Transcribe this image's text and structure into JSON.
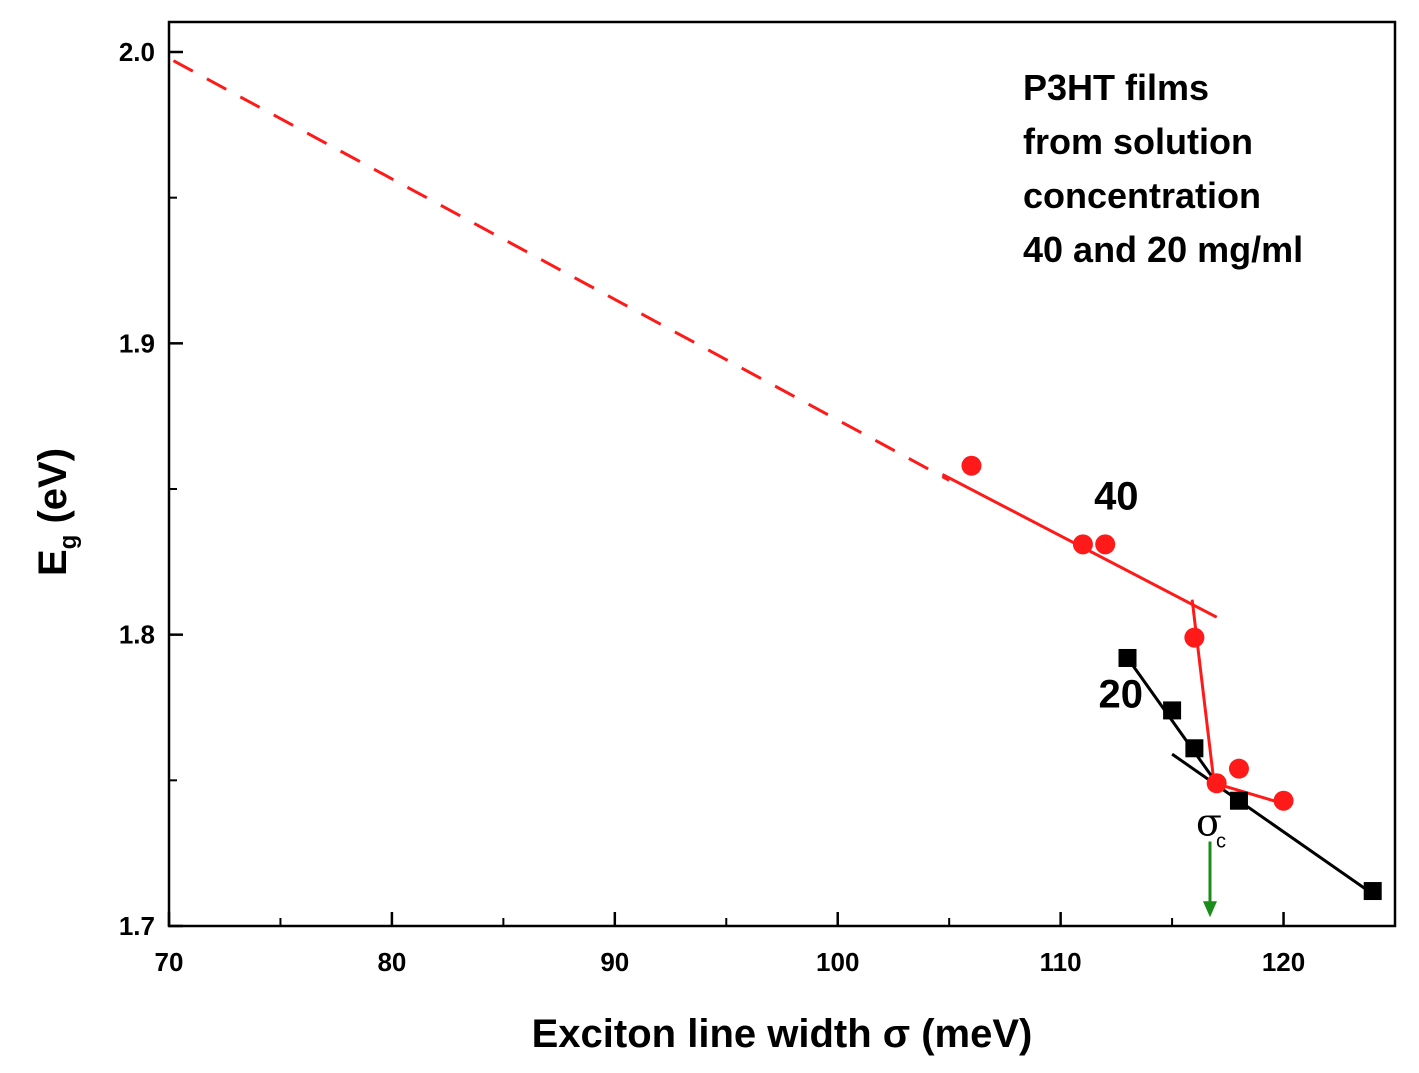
{
  "chart_data": {
    "type": "scatter",
    "xlabel": "Exciton line width σ (meV)",
    "ylabel_main": "E",
    "ylabel_sub": "g",
    "ylabel_unit": " (eV)",
    "xlim": [
      70,
      125
    ],
    "ylim": [
      1.7,
      2.01
    ],
    "xticks": [
      70,
      80,
      90,
      100,
      110,
      120
    ],
    "xtick_labels": [
      "70",
      "80",
      "90",
      "100",
      "110",
      "120"
    ],
    "x_minor_ticks": [
      75,
      85,
      95,
      105,
      115
    ],
    "yticks": [
      1.7,
      1.8,
      1.9,
      2.0
    ],
    "ytick_labels": [
      "1.7",
      "1.8",
      "1.9",
      "2.0"
    ],
    "y_minor_ticks": [
      1.75,
      1.85,
      1.95
    ],
    "annotation_lines": [
      "P3HT films",
      "from solution",
      "concentration",
      "40 and 20 mg/ml"
    ],
    "series": [
      {
        "name": "40",
        "color": "#ff1a1a",
        "marker": "circle",
        "x": [
          106,
          111,
          112,
          116,
          117,
          118,
          120
        ],
        "y": [
          1.858,
          1.831,
          1.831,
          1.799,
          1.749,
          1.754,
          1.743
        ],
        "label_at": [
          111.5,
          1.843
        ]
      },
      {
        "name": "20",
        "color": "#000000",
        "marker": "square",
        "x": [
          113,
          115,
          116,
          118,
          124
        ],
        "y": [
          1.792,
          1.774,
          1.761,
          1.743,
          1.712
        ],
        "label_at": [
          111.7,
          1.775
        ]
      }
    ],
    "fit_lines": [
      {
        "color": "#ff1a1a",
        "style": "dashed",
        "x": [
          70.2,
          105
        ],
        "y": [
          1.997,
          1.853
        ]
      },
      {
        "color": "#ff1a1a",
        "style": "solid",
        "x": [
          104.7,
          117.0
        ],
        "y": [
          1.855,
          1.806
        ]
      },
      {
        "color": "#ff1a1a",
        "style": "solid",
        "x": [
          115.9,
          116.9
        ],
        "y": [
          1.812,
          1.748
        ]
      },
      {
        "color": "#ff1a1a",
        "style": "solid",
        "x": [
          116.9,
          120.0
        ],
        "y": [
          1.749,
          1.742
        ]
      },
      {
        "color": "#000000",
        "style": "solid",
        "x": [
          113.0,
          117.0
        ],
        "y": [
          1.792,
          1.749
        ]
      },
      {
        "color": "#000000",
        "style": "solid",
        "x": [
          115.0,
          124.0
        ],
        "y": [
          1.759,
          1.711
        ]
      }
    ],
    "critical_marker": {
      "label": "σ",
      "subscript": "c",
      "x": 116.7,
      "arrow_color": "#1a8c1a",
      "arrow_from_y": 1.729,
      "arrow_to_y": 1.703
    }
  }
}
